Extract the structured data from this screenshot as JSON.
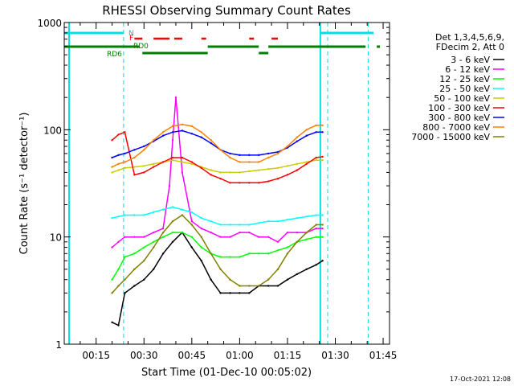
{
  "chart_data": {
    "type": "line",
    "title": "RHESSI Observing Summary Count Rates",
    "xlabel": "Start Time (01-Dec-10 00:05:02)",
    "ylabel": "Count Rate (s⁻¹ detector⁻¹)",
    "y_scale": "log",
    "ylim": [
      1,
      1000
    ],
    "xlim_minutes": [
      5.0,
      107.0
    ],
    "x_tick_labels": [
      "00:15",
      "00:30",
      "00:45",
      "01:00",
      "01:15",
      "01:30",
      "01:45"
    ],
    "x_tick_minutes": [
      15,
      30,
      45,
      60,
      75,
      90,
      105
    ],
    "y_tick_labels": [
      "1",
      "10",
      "100",
      "1000"
    ],
    "y_tick_values": [
      1,
      10,
      100,
      1000
    ],
    "legend_title": [
      "Det 1,3,4,5,6,9,",
      "FDecim 2, Att 0"
    ],
    "legend_position": "right",
    "series": [
      {
        "name": "3 - 6 keV",
        "color": "#000000",
        "x": [
          20,
          22,
          24,
          27,
          30,
          33,
          36,
          39,
          42,
          45,
          48,
          51,
          54,
          57,
          60,
          63,
          66,
          69,
          72,
          75,
          78,
          81,
          84,
          86
        ],
        "y": [
          1.6,
          1.5,
          3,
          3.5,
          4,
          5,
          7,
          9,
          11,
          8,
          6,
          4,
          3,
          3,
          3,
          3,
          3.5,
          3.5,
          3.5,
          4,
          4.5,
          5,
          5.5,
          6
        ]
      },
      {
        "name": "6 - 12 keV",
        "color": "#ff00ff",
        "x": [
          20,
          22,
          24,
          27,
          30,
          33,
          36,
          38,
          39,
          40,
          42,
          45,
          48,
          51,
          54,
          57,
          60,
          63,
          66,
          69,
          72,
          75,
          78,
          81,
          84,
          86
        ],
        "y": [
          8,
          9,
          10,
          10,
          10,
          11,
          12,
          30,
          80,
          200,
          40,
          14,
          12,
          11,
          10,
          10,
          11,
          11,
          10,
          10,
          9,
          11,
          11,
          11,
          12,
          12
        ]
      },
      {
        "name": "12 - 25 keV",
        "color": "#00ff00",
        "x": [
          20,
          22,
          24,
          27,
          30,
          33,
          36,
          39,
          42,
          45,
          48,
          51,
          54,
          57,
          60,
          63,
          66,
          69,
          72,
          75,
          78,
          81,
          84,
          86
        ],
        "y": [
          4,
          5,
          6.5,
          7,
          8,
          9,
          10,
          11,
          11,
          10,
          8,
          7,
          6.5,
          6.5,
          6.5,
          7,
          7,
          7,
          7.5,
          8,
          9,
          9.5,
          10,
          10
        ]
      },
      {
        "name": "25 - 50 keV",
        "color": "#00ffff",
        "x": [
          20,
          22,
          24,
          27,
          30,
          33,
          36,
          39,
          42,
          45,
          48,
          51,
          54,
          57,
          60,
          63,
          66,
          69,
          72,
          75,
          78,
          81,
          84,
          86
        ],
        "y": [
          15,
          15.5,
          16,
          16,
          16,
          17,
          18,
          19,
          18,
          17,
          15,
          14,
          13,
          13,
          13,
          13,
          13.5,
          14,
          14,
          14.5,
          15,
          15.5,
          16,
          16
        ]
      },
      {
        "name": "50 - 100 keV",
        "color": "#cccc00",
        "x": [
          20,
          22,
          24,
          27,
          30,
          33,
          36,
          39,
          42,
          45,
          48,
          51,
          54,
          57,
          60,
          63,
          66,
          69,
          72,
          75,
          78,
          81,
          84,
          86
        ],
        "y": [
          40,
          42,
          44,
          45,
          46,
          48,
          50,
          52,
          50,
          48,
          45,
          42,
          40,
          40,
          40,
          41,
          42,
          43,
          44,
          46,
          48,
          50,
          52,
          52
        ]
      },
      {
        "name": "100 - 300 keV",
        "color": "#ff0000",
        "x": [
          20,
          22,
          24,
          27,
          30,
          33,
          36,
          39,
          42,
          45,
          48,
          51,
          54,
          57,
          60,
          63,
          66,
          69,
          72,
          75,
          78,
          81,
          84,
          86
        ],
        "y": [
          80,
          90,
          95,
          38,
          40,
          45,
          50,
          55,
          55,
          50,
          44,
          38,
          35,
          32,
          32,
          32,
          32,
          33,
          35,
          38,
          42,
          48,
          55,
          56
        ]
      },
      {
        "name": "300 - 800 keV",
        "color": "#0000ff",
        "x": [
          20,
          22,
          24,
          27,
          30,
          33,
          36,
          39,
          42,
          45,
          48,
          51,
          54,
          57,
          60,
          63,
          66,
          69,
          72,
          75,
          78,
          81,
          84,
          86
        ],
        "y": [
          55,
          58,
          60,
          65,
          70,
          78,
          88,
          95,
          98,
          92,
          85,
          75,
          65,
          60,
          58,
          58,
          58,
          60,
          62,
          68,
          78,
          88,
          95,
          95
        ]
      },
      {
        "name": "800 - 7000 keV",
        "color": "#ff8000",
        "x": [
          20,
          22,
          24,
          27,
          30,
          33,
          36,
          39,
          42,
          45,
          48,
          51,
          54,
          57,
          60,
          63,
          66,
          69,
          72,
          75,
          78,
          81,
          84,
          86
        ],
        "y": [
          45,
          48,
          50,
          55,
          65,
          80,
          95,
          108,
          112,
          108,
          95,
          80,
          65,
          55,
          50,
          50,
          50,
          55,
          60,
          70,
          85,
          100,
          110,
          110
        ]
      },
      {
        "name": "7000 - 15000 keV",
        "color": "#808000",
        "x": [
          20,
          22,
          24,
          27,
          30,
          33,
          36,
          39,
          42,
          45,
          48,
          51,
          54,
          57,
          60,
          63,
          66,
          69,
          72,
          75,
          78,
          81,
          84,
          86
        ],
        "y": [
          3,
          3.5,
          4,
          5,
          6,
          8,
          11,
          14,
          16,
          13,
          10,
          7,
          5,
          4,
          3.5,
          3.5,
          3.5,
          4,
          5,
          7,
          9,
          11,
          13,
          13
        ]
      }
    ],
    "annotations": [
      {
        "text": "N",
        "color": "#00c8c8"
      },
      {
        "text": "F",
        "color": "#ff0000"
      },
      {
        "text": "RD0",
        "color": "#007f00"
      },
      {
        "text": "RD6",
        "color": "#007f00"
      }
    ],
    "footer_date": "17-Oct-2021 12:08"
  }
}
